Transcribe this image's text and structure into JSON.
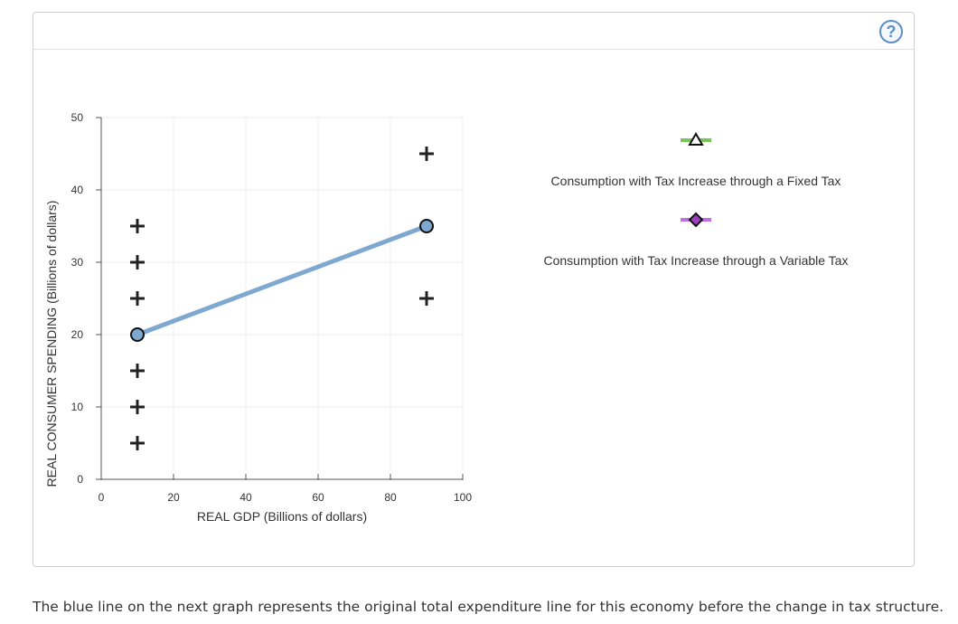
{
  "help": {
    "label": "?"
  },
  "chart_data": {
    "type": "line",
    "xlabel": "REAL GDP (Billions of dollars)",
    "ylabel": "REAL CONSUMER SPENDING (Billions of dollars)",
    "xlim": [
      0,
      100
    ],
    "ylim": [
      0,
      50
    ],
    "x_ticks": [
      0,
      20,
      40,
      60,
      80,
      100
    ],
    "y_ticks": [
      0,
      10,
      20,
      30,
      40,
      50
    ],
    "grid": true,
    "series": [
      {
        "name": "Original total expenditure line",
        "color": "#7fa8d0",
        "points": [
          {
            "x": 10,
            "y": 20
          },
          {
            "x": 90,
            "y": 35
          }
        ]
      }
    ],
    "markers": [
      {
        "x": 10,
        "y": 35
      },
      {
        "x": 10,
        "y": 30
      },
      {
        "x": 10,
        "y": 25
      },
      {
        "x": 10,
        "y": 15
      },
      {
        "x": 10,
        "y": 10
      },
      {
        "x": 10,
        "y": 5
      },
      {
        "x": 90,
        "y": 45
      },
      {
        "x": 90,
        "y": 25
      }
    ],
    "legend": [
      {
        "label": "Consumption with Tax Increase through a Fixed Tax",
        "symbol": "triangle",
        "line_color": "#79c35a",
        "marker_fill": "#ffffff"
      },
      {
        "label": "Consumption with Tax Increase through a Variable Tax",
        "symbol": "diamond",
        "line_color": "#c070e0",
        "marker_fill": "#9b3fc0"
      }
    ]
  },
  "caption": "The blue line on the next graph represents the original total expenditure line for this economy before the change in tax structure."
}
